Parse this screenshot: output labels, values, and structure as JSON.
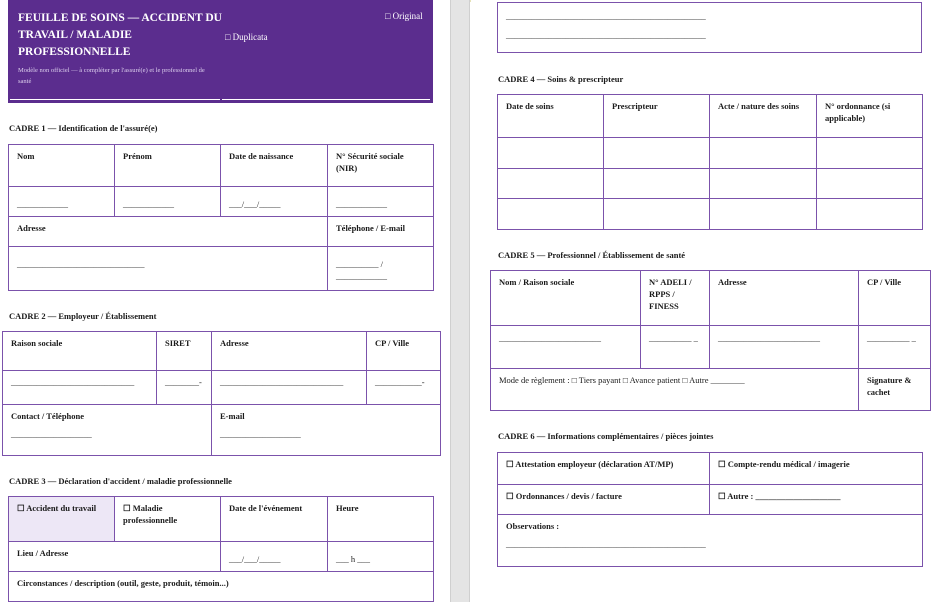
{
  "header": {
    "title": "FEUILLE DE SOINS — ACCIDENT DU TRAVAIL / MALADIE PROFESSIONNELLE",
    "subtitle": "Modèle non officiel — à compléter par l'assuré(e) et le professionnel de santé",
    "original": "□ Original",
    "duplicata": "□ Duplicata",
    "accent": "#5b2d8e",
    "border": "#7b52ab"
  },
  "cadre1": {
    "label": "CADRE 1 — Identification de l'assuré(e)",
    "headers": [
      "Nom",
      "Prénom",
      "Date de naissance",
      "N° Sécurité sociale (NIR)"
    ],
    "blanks": [
      "____________",
      "____________",
      "___/___/_____",
      "____________"
    ],
    "adresse": "Adresse",
    "telephone": "Téléphone / E-mail",
    "adresse_blank": "______________________________",
    "telephone_blank": "__________ / ____________"
  },
  "cadre2": {
    "label": "CADRE 2 — Employeur / Établissement",
    "headers": [
      "Raison sociale",
      "SIRET",
      "Adresse",
      "CP / Ville"
    ],
    "blanks": [
      "_____________________________",
      "________-",
      "_____________________________",
      "___________-"
    ],
    "contact": "Contact / Téléphone",
    "email": "E-mail",
    "contact_blank": "___________________",
    "email_blank": "___________________"
  },
  "cadre3": {
    "label": "CADRE 3 — Déclaration d'accident / maladie professionnelle",
    "accident": "☐ Accident du travail",
    "maladie": "☐ Maladie professionnelle",
    "date": "Date de l'événement",
    "heure": "Heure",
    "lieu": "Lieu / Adresse",
    "date_blank": "___/___/_____",
    "heure_blank": "___ h ___",
    "circonstances": "Circonstances / description (outil, geste, produit, témoin...)"
  },
  "continuation": {
    "lines": [
      "_______________________________________________",
      "_______________________________________________"
    ]
  },
  "cadre4": {
    "label": "CADRE 4 — Soins & prescripteur",
    "headers": [
      "Date de soins",
      "Prescripteur",
      "Acte / nature des soins",
      "N° ordonnance (si applicable)"
    ]
  },
  "cadre5": {
    "label": "CADRE 5 — Professionnel / Établissement de santé",
    "headers": [
      "Nom / Raison sociale",
      "N° ADELI / RPPS / FINESS",
      "Adresse",
      "CP / Ville"
    ],
    "blanks": [
      "________________________",
      "__________ _",
      "________________________",
      "__________ _"
    ],
    "reglement": "Mode de règlement :  □ Tiers payant  □ Avance patient  □ Autre ________",
    "signature": "Signature & cachet"
  },
  "cadre6": {
    "label": "CADRE 6 — Informations complémentaires / pièces jointes",
    "items": [
      "☐ Attestation employeur (déclaration AT/MP)",
      "☐ Compte-rendu médical / imagerie",
      "☐ Ordonnances / devis / facture",
      "☐ Autre : ____________________"
    ],
    "observations": "Observations :",
    "observations_blank": "_______________________________________________"
  }
}
